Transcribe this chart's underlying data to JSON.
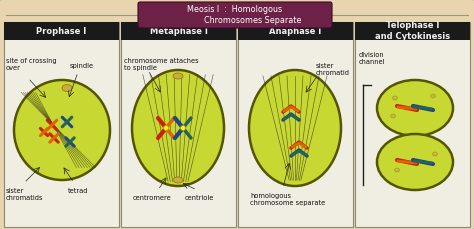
{
  "title_text": "Meosis I  :  Homologous\n              Chromosomes Separate",
  "title_box_color": "#6d2147",
  "title_text_color": "#ffffff",
  "bg_color": "#e8d5b0",
  "panel_bg": "#f0ece0",
  "panel_header_bg": "#2a2a2a",
  "panel_header_text": "#ffffff",
  "cell_color": "#c8d832",
  "cell_border": "#555500",
  "phases": [
    "Prophase I",
    "Metaphase I",
    "Anaphase I",
    "Telophase I\nand Cytokinesis"
  ],
  "chr_red": "#cc2200",
  "chr_orange": "#dd6600",
  "chr_blue": "#224488",
  "chr_teal": "#226655",
  "spindle_color": "#333322",
  "centriole_color": "#aa8800",
  "outer_bg": "#d4c090"
}
